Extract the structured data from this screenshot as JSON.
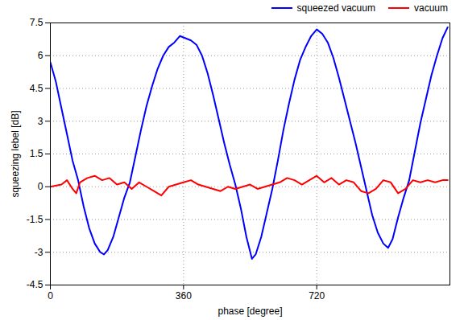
{
  "chart_data": {
    "type": "line",
    "x_label": "phase [degree]",
    "y_label": "squeezing lebel [dB]",
    "xlim": [
      0,
      1080
    ],
    "xticks": [
      0,
      360,
      720
    ],
    "ylim": [
      -4.5,
      7.5
    ],
    "yticks": [
      -4.5,
      -3,
      -1.5,
      0,
      1.5,
      3,
      4.5,
      6,
      7.5
    ],
    "grid": true,
    "legend": "top",
    "series": [
      {
        "name": "squeezed vacuum",
        "color": "#0000ff",
        "x": [
          0,
          15,
          30,
          45,
          60,
          75,
          90,
          105,
          120,
          135,
          145,
          155,
          170,
          185,
          200,
          215,
          230,
          245,
          260,
          275,
          290,
          305,
          320,
          335,
          350,
          365,
          380,
          395,
          410,
          425,
          440,
          455,
          470,
          485,
          500,
          515,
          530,
          545,
          555,
          570,
          585,
          600,
          615,
          630,
          645,
          660,
          675,
          690,
          705,
          720,
          735,
          750,
          765,
          780,
          795,
          810,
          825,
          840,
          855,
          870,
          885,
          900,
          913,
          925,
          940,
          955,
          970,
          985,
          1000,
          1015,
          1030,
          1045,
          1060,
          1074
        ],
        "values": [
          5.7,
          4.8,
          3.6,
          2.4,
          1.2,
          0.3,
          -0.9,
          -1.9,
          -2.6,
          -3.0,
          -3.1,
          -2.9,
          -2.3,
          -1.4,
          -0.5,
          0.2,
          1.4,
          2.6,
          3.7,
          4.6,
          5.4,
          6.0,
          6.4,
          6.6,
          6.9,
          6.8,
          6.7,
          6.5,
          6.0,
          5.2,
          4.2,
          3.1,
          2.0,
          1.0,
          0.1,
          -1.0,
          -2.3,
          -3.3,
          -3.1,
          -2.3,
          -1.2,
          -0.1,
          1.2,
          2.6,
          3.8,
          4.9,
          5.8,
          6.4,
          6.9,
          7.2,
          7.0,
          6.6,
          5.9,
          5.0,
          4.0,
          3.0,
          2.0,
          0.9,
          -0.2,
          -1.3,
          -2.1,
          -2.6,
          -2.8,
          -2.4,
          -1.4,
          -0.5,
          0.3,
          1.6,
          2.9,
          4.0,
          5.1,
          6.0,
          6.8,
          7.3
        ]
      },
      {
        "name": "vacuum",
        "color": "#ff0000",
        "x": [
          0,
          30,
          45,
          60,
          70,
          80,
          100,
          120,
          140,
          160,
          180,
          200,
          220,
          240,
          260,
          280,
          300,
          320,
          340,
          360,
          380,
          400,
          420,
          440,
          460,
          480,
          500,
          520,
          540,
          560,
          580,
          600,
          620,
          640,
          660,
          680,
          700,
          720,
          740,
          760,
          780,
          800,
          820,
          840,
          860,
          880,
          900,
          920,
          940,
          960,
          980,
          1000,
          1020,
          1040,
          1060,
          1074
        ],
        "values": [
          0.0,
          0.1,
          0.3,
          -0.1,
          -0.3,
          0.2,
          0.4,
          0.5,
          0.3,
          0.4,
          0.1,
          0.2,
          -0.1,
          0.2,
          0.0,
          -0.2,
          -0.4,
          0.0,
          0.1,
          0.2,
          0.3,
          0.1,
          0.0,
          -0.1,
          -0.2,
          0.0,
          -0.1,
          0.0,
          0.1,
          -0.1,
          0.0,
          0.1,
          0.2,
          0.4,
          0.3,
          0.1,
          0.3,
          0.5,
          0.2,
          0.4,
          0.1,
          0.3,
          0.2,
          -0.2,
          -0.3,
          -0.1,
          0.3,
          0.2,
          -0.3,
          -0.1,
          0.3,
          0.2,
          0.3,
          0.2,
          0.3,
          0.3
        ]
      }
    ]
  }
}
